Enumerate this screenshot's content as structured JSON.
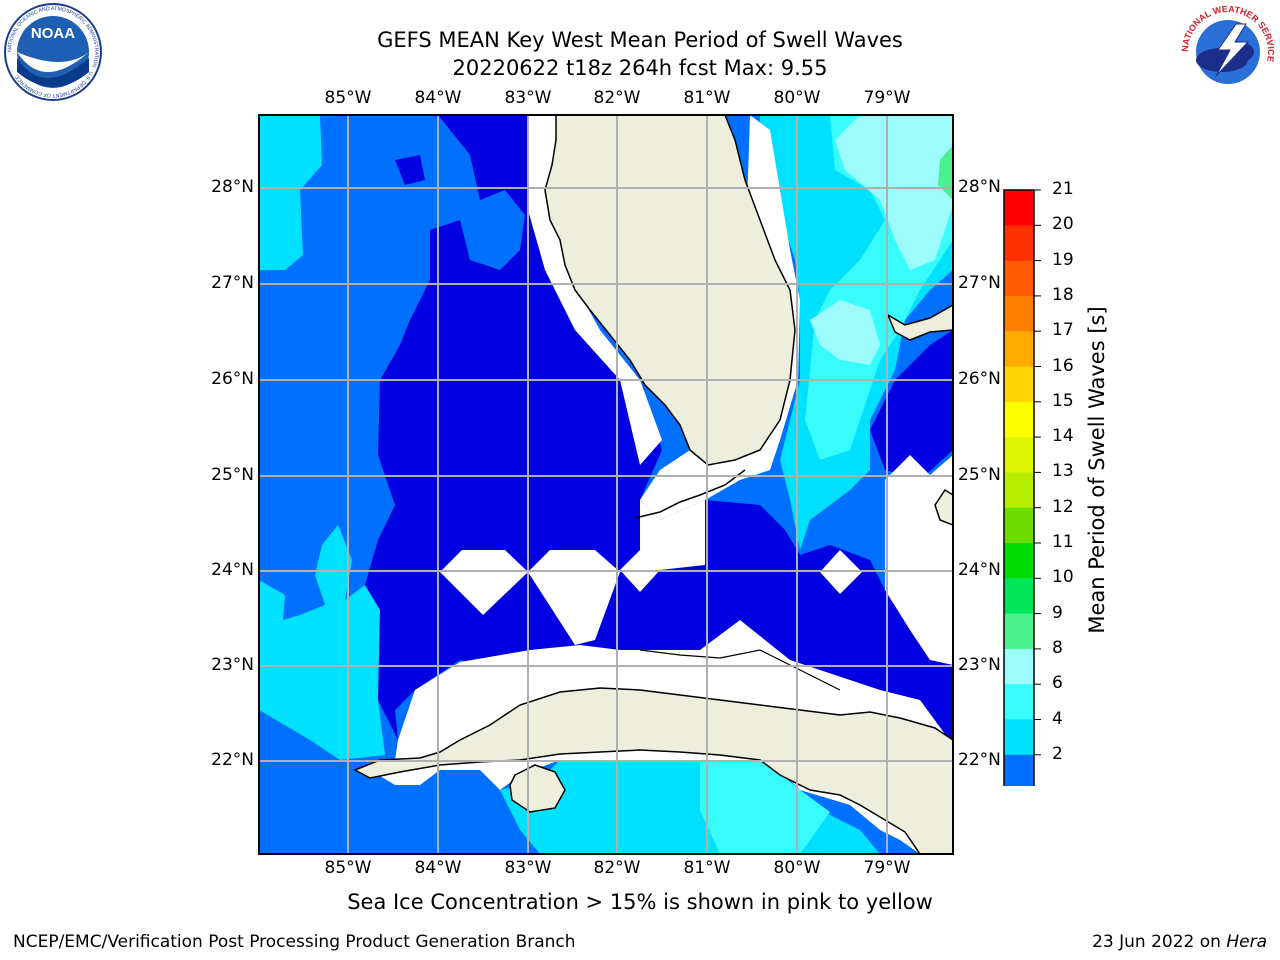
{
  "title": {
    "line1": "GEFS MEAN Key West Mean Period of Swell Waves",
    "line2": "20220622 t18z 264h fcst   Max: 9.55"
  },
  "map": {
    "lon_labels": [
      "85°W",
      "84°W",
      "83°W",
      "82°W",
      "81°W",
      "80°W",
      "79°W"
    ],
    "lat_labels": [
      "28°N",
      "27°N",
      "26°N",
      "25°N",
      "24°N",
      "23°N",
      "22°N"
    ]
  },
  "colorbar": {
    "title": "Mean Period of Swell Waves [s]",
    "ticks": [
      "21",
      "20",
      "19",
      "18",
      "17",
      "16",
      "15",
      "14",
      "13",
      "12",
      "11",
      "10",
      "9",
      "8",
      "6",
      "4",
      "2"
    ],
    "colors": [
      "#ff0000",
      "#ff3000",
      "#ff5a00",
      "#ff8000",
      "#ffaa00",
      "#ffd400",
      "#ffff00",
      "#dcf500",
      "#b5ec00",
      "#6fdc00",
      "#00dc00",
      "#00e65a",
      "#4cf08c",
      "#9cfcfc",
      "#38fcfc",
      "#00e0ff",
      "#0070ff"
    ],
    "extend_color": "#0000e0"
  },
  "caption": "Sea Ice Concentration > 15% is shown in pink to yellow",
  "footer": {
    "left": "NCEP/EMC/Verification Post Processing Product Generation Branch",
    "date": "23 Jun 2022 on ",
    "host": "Hera"
  },
  "logos": {
    "noaa_text": "NOAA",
    "noaa_ring": "NATIONAL OCEANIC AND ATMOSPHERIC ADMINISTRATION · U.S. DEPARTMENT OF COMMERCE",
    "nws_ring": "NATIONAL WEATHER SERVICE"
  }
}
